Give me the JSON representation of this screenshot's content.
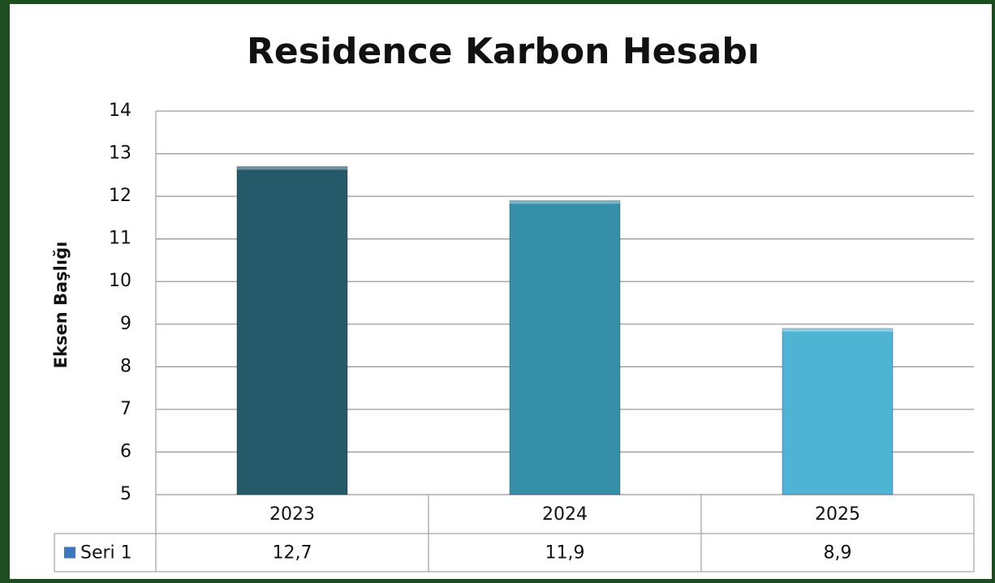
{
  "chart_data": {
    "type": "bar",
    "title": "Residence Karbon Hesabı",
    "y_label": "Eksen Başlığı",
    "categories": [
      "2023",
      "2024",
      "2025"
    ],
    "series": [
      {
        "name": "Seri 1",
        "color": "#3b78c0",
        "colors": [
          "#245a69",
          "#368fa8",
          "#4fb4d4"
        ],
        "values": [
          12.7,
          11.9,
          8.9
        ],
        "value_labels": [
          "12,7",
          "11,9",
          "8,9"
        ]
      }
    ],
    "ylim": [
      5,
      14
    ],
    "yticks": [
      5,
      6,
      7,
      8,
      9,
      10,
      11,
      12,
      13,
      14
    ],
    "grid": true,
    "data_table": true
  }
}
